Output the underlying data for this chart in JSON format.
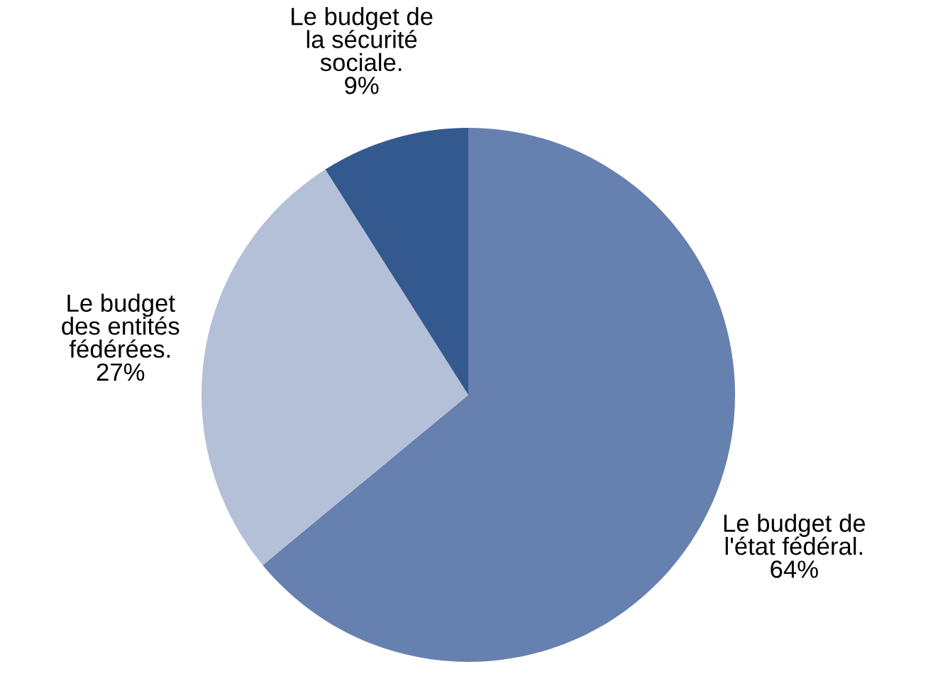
{
  "chart_data": {
    "type": "pie",
    "categories": [
      "Le budget de\nl'état fédéral.",
      "Le budget\ndes entités\nfédérées.",
      "Le budget de\nla sécurité\nsociale."
    ],
    "values": [
      64,
      27,
      9
    ],
    "value_labels": [
      "64%",
      "27%",
      "9%"
    ],
    "colors": [
      "#6680b0",
      "#b4c0d8",
      "#34598f"
    ],
    "legend": false
  }
}
